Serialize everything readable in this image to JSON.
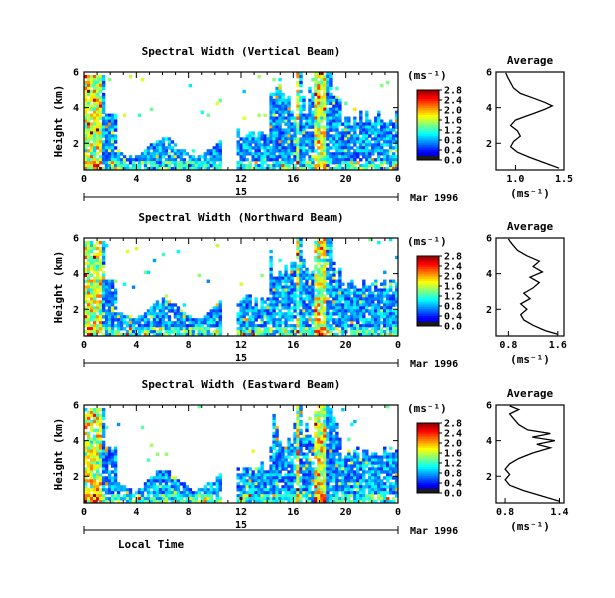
{
  "panels": [
    {
      "title": "Spectral Width (Vertical Beam)",
      "ylabel": "Height (km)",
      "yticks": [
        "2",
        "4",
        "6"
      ],
      "xticks": [
        "0",
        "4",
        "8",
        "12",
        "16",
        "20",
        "0"
      ],
      "date_day": "15",
      "date_label": "Mar 1996",
      "colorbar": {
        "unit": "(ms⁻¹)",
        "labels": [
          "0.0",
          "0.4",
          "0.8",
          "1.2",
          "1.6",
          "2.0",
          "2.4",
          "2.8"
        ]
      },
      "profile": {
        "title": "Average",
        "xlabel": "(ms⁻¹)",
        "xticks": [
          "1.0",
          "1.5"
        ],
        "xlim": [
          0.8,
          1.5
        ],
        "yticks": [
          "2",
          "4",
          "6"
        ],
        "ylim": [
          0.5,
          6
        ],
        "x": [
          1.45,
          1.3,
          1.15,
          1.02,
          0.95,
          0.98,
          1.05,
          1.02,
          0.95,
          1.0,
          1.1,
          1.2,
          1.3,
          1.38,
          1.3,
          1.2,
          1.05,
          0.98,
          0.95,
          0.92,
          0.9
        ],
        "y": [
          0.6,
          0.9,
          1.2,
          1.5,
          1.8,
          2.1,
          2.4,
          2.7,
          3.0,
          3.3,
          3.5,
          3.7,
          3.9,
          4.1,
          4.3,
          4.5,
          4.8,
          5.1,
          5.4,
          5.7,
          5.95
        ]
      }
    },
    {
      "title": "Spectral Width (Northward Beam)",
      "ylabel": "Height (km)",
      "yticks": [
        "2",
        "4",
        "6"
      ],
      "xticks": [
        "0",
        "4",
        "8",
        "12",
        "16",
        "20",
        "0"
      ],
      "date_day": "15",
      "date_label": "Mar 1996",
      "colorbar": {
        "unit": "(ms⁻¹)",
        "labels": [
          "0.0",
          "0.4",
          "0.8",
          "1.2",
          "1.6",
          "2.0",
          "2.4",
          "2.8"
        ]
      },
      "profile": {
        "title": "Average",
        "xlabel": "(ms⁻¹)",
        "xticks": [
          "0.8",
          "1.6"
        ],
        "xlim": [
          0.6,
          1.7
        ],
        "yticks": [
          "2",
          "4",
          "6"
        ],
        "ylim": [
          0.5,
          6
        ],
        "x": [
          1.6,
          1.4,
          1.2,
          1.05,
          1.0,
          1.1,
          1.0,
          1.15,
          1.05,
          1.2,
          1.3,
          1.15,
          1.35,
          1.2,
          1.3,
          1.1,
          0.95,
          0.9,
          0.85,
          0.82,
          0.8
        ],
        "y": [
          0.6,
          0.8,
          1.1,
          1.4,
          1.7,
          2.0,
          2.3,
          2.6,
          2.9,
          3.2,
          3.5,
          3.8,
          4.1,
          4.4,
          4.7,
          5.0,
          5.3,
          5.5,
          5.7,
          5.85,
          5.95
        ]
      }
    },
    {
      "title": "Spectral Width (Eastward Beam)",
      "ylabel": "Height (km)",
      "yticks": [
        "2",
        "4",
        "6"
      ],
      "xticks": [
        "0",
        "4",
        "8",
        "12",
        "16",
        "20",
        "0"
      ],
      "date_day": "15",
      "date_label": "Mar 1996",
      "colorbar": {
        "unit": "(ms⁻¹)",
        "labels": [
          "0.0",
          "0.4",
          "0.8",
          "1.2",
          "1.6",
          "2.0",
          "2.4",
          "2.8"
        ]
      },
      "profile": {
        "title": "Average",
        "xlabel": "(ms⁻¹)",
        "xticks": [
          "0.8",
          "1.4"
        ],
        "xlim": [
          0.7,
          1.45
        ],
        "yticks": [
          "2",
          "4",
          "6"
        ],
        "ylim": [
          0.5,
          6
        ],
        "x": [
          1.4,
          1.2,
          1.0,
          0.85,
          0.8,
          0.85,
          0.8,
          0.85,
          0.95,
          1.1,
          1.3,
          1.15,
          1.35,
          1.1,
          1.3,
          1.05,
          0.95,
          0.9,
          0.85,
          0.95,
          0.85
        ],
        "y": [
          0.6,
          0.9,
          1.2,
          1.5,
          1.8,
          2.1,
          2.4,
          2.7,
          3.0,
          3.3,
          3.6,
          3.8,
          4.0,
          4.2,
          4.4,
          4.6,
          4.9,
          5.2,
          5.5,
          5.75,
          5.95
        ]
      }
    }
  ],
  "xlabel": "Local Time",
  "chart_data": [
    {
      "type": "heatmap",
      "title": "Spectral Width (Vertical Beam)",
      "xlabel": "Local Time",
      "ylabel": "Height (km)",
      "x_range_hours": [
        0,
        24
      ],
      "y_range_km": [
        0.5,
        6
      ],
      "color_range": [
        0.0,
        2.8
      ],
      "colorbar_unit": "(ms⁻¹)",
      "data_gap_hours": [
        10.3,
        11.5
      ]
    },
    {
      "type": "line",
      "title": "Average",
      "xlabel": "(ms⁻¹)",
      "ylabel": "Height (km)",
      "xlim": [
        0.8,
        1.5
      ],
      "ylim": [
        0.5,
        6
      ]
    },
    {
      "type": "heatmap",
      "title": "Spectral Width (Northward Beam)",
      "xlabel": "Local Time",
      "ylabel": "Height (km)",
      "x_range_hours": [
        0,
        24
      ],
      "y_range_km": [
        0.5,
        6
      ],
      "color_range": [
        0.0,
        2.8
      ],
      "colorbar_unit": "(ms⁻¹)",
      "data_gap_hours": [
        10.3,
        11.5
      ]
    },
    {
      "type": "line",
      "title": "Average",
      "xlabel": "(ms⁻¹)",
      "ylabel": "Height (km)",
      "xlim": [
        0.6,
        1.7
      ],
      "ylim": [
        0.5,
        6
      ]
    },
    {
      "type": "heatmap",
      "title": "Spectral Width (Eastward Beam)",
      "xlabel": "Local Time",
      "ylabel": "Height (km)",
      "x_range_hours": [
        0,
        24
      ],
      "y_range_km": [
        0.5,
        6
      ],
      "color_range": [
        0.0,
        2.8
      ],
      "colorbar_unit": "(ms⁻¹)",
      "data_gap_hours": [
        10.3,
        11.5
      ]
    },
    {
      "type": "line",
      "title": "Average",
      "xlabel": "(ms⁻¹)",
      "ylabel": "Height (km)",
      "xlim": [
        0.7,
        1.45
      ],
      "ylim": [
        0.5,
        6
      ]
    }
  ]
}
